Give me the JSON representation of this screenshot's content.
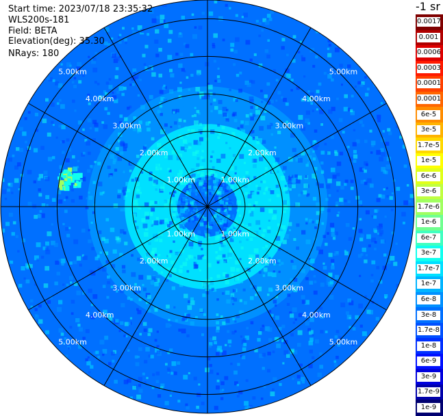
{
  "header": {
    "start_time": "Start time: 2023/07/18 23:35:32",
    "instrument": "WLS200s-181",
    "field": "Field: BETA",
    "elevation": "Elevation(deg): 35.30",
    "nrays": "NRays: 180"
  },
  "colorbar": {
    "unit_title": "-1 sr",
    "labels": [
      "0.0017",
      "0.001",
      "0.0006",
      "0.0003",
      "0.00017",
      "0.0001",
      "6e-5",
      "3e-5",
      "1.7e-5",
      "1e-5",
      "6e-6",
      "3e-6",
      "1.7e-6",
      "1e-6",
      "6e-7",
      "3e-7",
      "1.7e-7",
      "1e-7",
      "6e-8",
      "3e-8",
      "1.7e-8",
      "1e-8",
      "6e-9",
      "3e-9",
      "1.7e-9",
      "1e-9"
    ],
    "colors": [
      "#7f0000",
      "#b00000",
      "#dd0000",
      "#ff1a00",
      "#ff4000",
      "#ff6600",
      "#ff8c00",
      "#ffb300",
      "#ffd800",
      "#ffff00",
      "#e0ff1a",
      "#c0ff40",
      "#a0ff60",
      "#70ff90",
      "#40ffc0",
      "#10ffee",
      "#00e0ff",
      "#00b4ff",
      "#0090ff",
      "#0070ff",
      "#0050ff",
      "#0030ff",
      "#0010ff",
      "#0000dd",
      "#0000aa",
      "#000070"
    ]
  },
  "chart_data": {
    "type": "heatmap",
    "projection": "polar (PPI)",
    "field": "BETA",
    "nrays": 180,
    "max_range_km": 5.5,
    "range_rings_km": [
      1,
      2,
      3,
      4,
      5
    ],
    "ring_labels": [
      "1.00km",
      "2.00km",
      "3.00km",
      "4.00km",
      "5.00km"
    ],
    "spokes_deg": [
      0,
      30,
      60,
      90,
      120,
      150,
      180,
      210,
      240,
      270,
      300,
      330
    ],
    "background_value": "3e-8",
    "bands": [
      {
        "from_km": 0.0,
        "to_km": 0.8,
        "value": "3e-8"
      },
      {
        "from_km": 0.8,
        "to_km": 2.2,
        "value": "1.7e-7"
      },
      {
        "from_km": 2.2,
        "to_km": 3.2,
        "value": "6e-8"
      },
      {
        "from_km": 3.2,
        "to_km": 5.5,
        "value": "3e-8"
      }
    ],
    "hotspot": {
      "azimuth_deg": 282,
      "range_km": 3.8,
      "value": "3e-7"
    }
  }
}
